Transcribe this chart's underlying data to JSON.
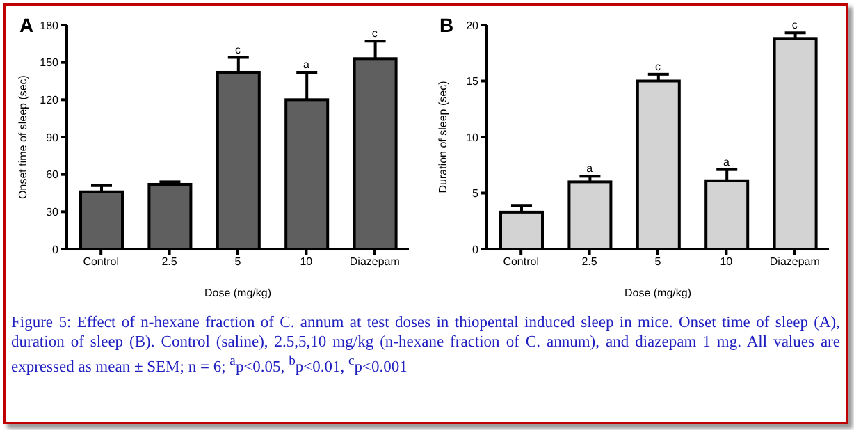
{
  "chart_data": [
    {
      "type": "bar",
      "title": "A",
      "xlabel": "Dose (mg/kg)",
      "ylabel": "Onset time of sleep (sec)",
      "categories": [
        "Control",
        "2.5",
        "5",
        "10",
        "Diazepam"
      ],
      "values": [
        46,
        52,
        142,
        120,
        153
      ],
      "errors": [
        5,
        2,
        12,
        22,
        14
      ],
      "color": "#5f5f5f",
      "ylim": [
        0,
        180
      ],
      "yticks": [
        0,
        30,
        60,
        90,
        120,
        150,
        180
      ],
      "annotations": [
        {
          "text": "c",
          "x": "5",
          "y": 154
        },
        {
          "text": "a",
          "x": "10",
          "y": 142
        },
        {
          "text": "c",
          "x": "Diazepam",
          "y": 167
        },
        "Figure 5: Effect of n-hexane fraction of C. annum at test doses in thiopental induced sleep in mice. Onset time of sleep (A), duration of sleep (B). Control (saline), 2.5,5,10 mg/kg (n-hexane fraction of C. annum), and diazepam 1 mg. All values are expressed as mean ± SEM; n = 6; $^{a}$p<0.05, $^{b}$p<0.01, $^{c}$p<0.001"
      ]
    },
    {
      "type": "bar",
      "title": "B",
      "xlabel": "Dose (mg/kg)",
      "ylabel": "Duration of sleep (sec)",
      "categories": [
        "Control",
        "2.5",
        "5",
        "10",
        "Diazepam"
      ],
      "values": [
        3.3,
        6.0,
        15.0,
        6.1,
        18.8
      ],
      "errors": [
        0.6,
        0.5,
        0.6,
        1.0,
        0.5
      ],
      "color": "#d3d3d3",
      "ylim": [
        0,
        20
      ],
      "yticks": [
        0,
        5,
        10,
        15,
        20
      ],
      "annotations": [
        {
          "text": "a",
          "x": "2.5",
          "y": 6.5
        },
        {
          "text": "c",
          "x": "5",
          "y": 15.6
        },
        {
          "text": "a",
          "x": "10",
          "y": 7.1
        },
        {
          "text": "c",
          "x": "Diazepam",
          "y": 19.3
        }
      ]
    }
  ]
}
